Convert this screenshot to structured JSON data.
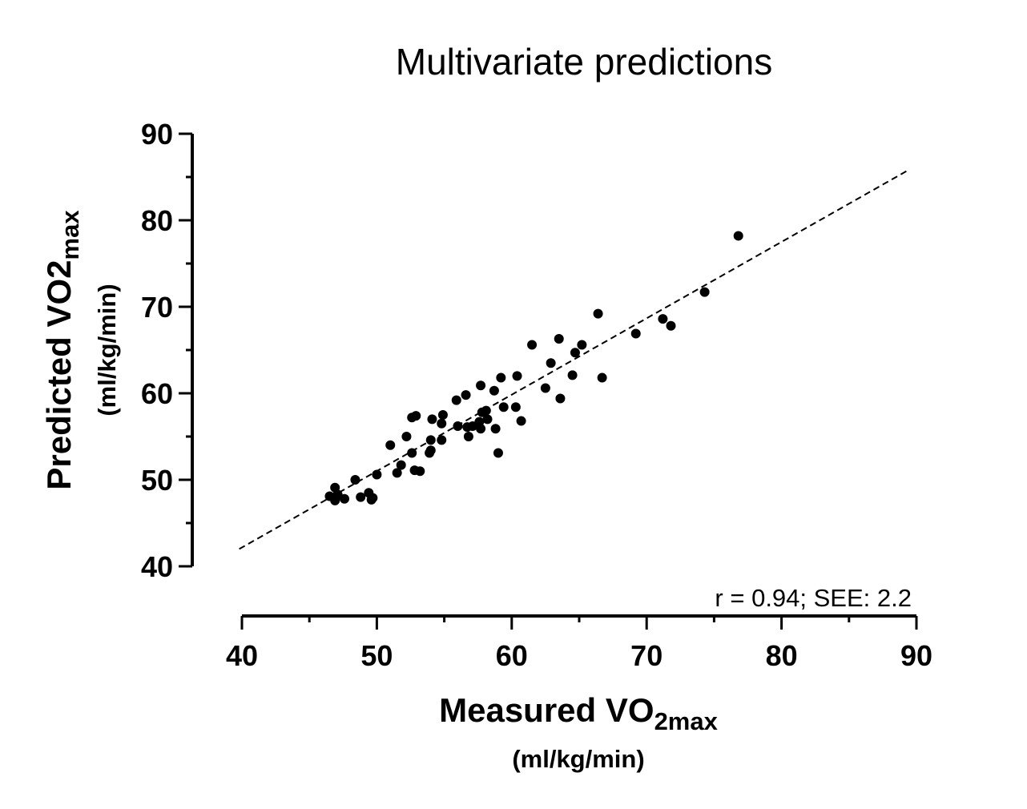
{
  "chart_data": {
    "type": "scatter",
    "title": "Multivariate predictions",
    "xlabel": {
      "main": "Measured VO",
      "sub": "2max",
      "units": "(ml/kg/min)"
    },
    "ylabel": {
      "main": "Predicted VO2",
      "sub": "max",
      "units": "(ml/kg/min)"
    },
    "xlim": [
      40,
      90
    ],
    "ylim": [
      40,
      90
    ],
    "xticks": [
      40,
      50,
      60,
      70,
      80,
      90
    ],
    "yticks": [
      40,
      50,
      60,
      70,
      80,
      90
    ],
    "xtick_labels": [
      "40",
      "50",
      "60",
      "70",
      "80",
      "90"
    ],
    "ytick_labels": [
      "40",
      "50",
      "60",
      "70",
      "80",
      "90"
    ],
    "grid": false,
    "annotation": "r = 0.94; SEE: 2.2",
    "fit_line": {
      "x": [
        39.8,
        89.4
      ],
      "y": [
        42.0,
        85.8
      ],
      "style": "dashed"
    },
    "points": [
      [
        76.8,
        78.2
      ],
      [
        74.3,
        71.7
      ],
      [
        71.2,
        68.6
      ],
      [
        71.8,
        67.8
      ],
      [
        69.2,
        66.9
      ],
      [
        66.4,
        69.2
      ],
      [
        66.7,
        61.8
      ],
      [
        65.2,
        65.6
      ],
      [
        64.7,
        64.7
      ],
      [
        64.5,
        62.1
      ],
      [
        63.5,
        66.3
      ],
      [
        62.9,
        63.5
      ],
      [
        63.6,
        59.4
      ],
      [
        62.5,
        60.6
      ],
      [
        61.5,
        65.6
      ],
      [
        60.4,
        62.0
      ],
      [
        60.3,
        58.4
      ],
      [
        60.7,
        56.8
      ],
      [
        59.2,
        61.8
      ],
      [
        59.4,
        58.4
      ],
      [
        58.7,
        60.3
      ],
      [
        58.8,
        55.9
      ],
      [
        59.0,
        53.1
      ],
      [
        57.7,
        60.9
      ],
      [
        57.8,
        57.8
      ],
      [
        58.1,
        58.0
      ],
      [
        58.2,
        57.0
      ],
      [
        57.6,
        56.7
      ],
      [
        57.7,
        55.9
      ],
      [
        57.1,
        56.2
      ],
      [
        56.6,
        59.8
      ],
      [
        56.7,
        56.1
      ],
      [
        56.8,
        55.0
      ],
      [
        55.9,
        59.2
      ],
      [
        56.0,
        56.2
      ],
      [
        54.9,
        57.5
      ],
      [
        54.8,
        56.5
      ],
      [
        54.8,
        54.6
      ],
      [
        54.1,
        57.0
      ],
      [
        54.0,
        54.6
      ],
      [
        54.0,
        53.4
      ],
      [
        53.9,
        53.1
      ],
      [
        52.9,
        57.4
      ],
      [
        52.6,
        57.2
      ],
      [
        52.6,
        53.1
      ],
      [
        52.2,
        55.0
      ],
      [
        51.0,
        54.0
      ],
      [
        53.2,
        51.0
      ],
      [
        52.8,
        51.1
      ],
      [
        51.8,
        51.7
      ],
      [
        51.5,
        50.8
      ],
      [
        50.0,
        50.6
      ],
      [
        48.4,
        50.0
      ],
      [
        49.7,
        47.9
      ],
      [
        49.4,
        48.5
      ],
      [
        48.8,
        48.0
      ],
      [
        47.6,
        47.8
      ],
      [
        46.9,
        49.1
      ],
      [
        46.9,
        47.6
      ],
      [
        46.5,
        48.1
      ],
      [
        47.1,
        48.3
      ],
      [
        49.6,
        47.7
      ]
    ],
    "colors": {
      "points": "#000000",
      "axes": "#000000"
    }
  }
}
